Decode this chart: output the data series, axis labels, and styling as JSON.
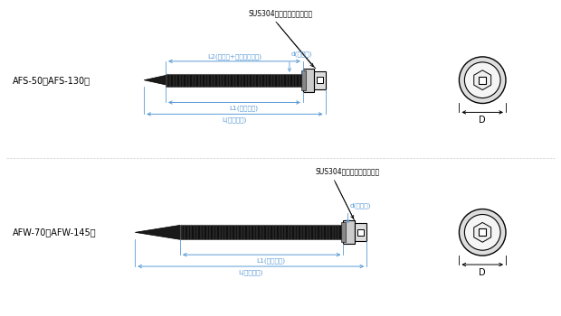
{
  "bg_color": "#ffffff",
  "line_color": "#000000",
  "dim_color": "#5b9bd5",
  "text_color": "#000000",
  "top_label": "AFS-50～AFS-130用",
  "top_sus_label": "SUS304シール材ネオプレン",
  "top_l2_label": "L2(ドリル+不完全ネジ部)",
  "top_d_label": "d(ネジ径)",
  "top_l1_label": "L1(ネジ長さ)",
  "top_l_label": "L(首下長さ)",
  "top_d_dim": "D",
  "bot_label": "AFW-70～AFW-145用",
  "bot_sus_label": "SUS304シール材ネオプレン",
  "bot_d_label": "d(ネジ径)",
  "bot_l1_label": "L1(ネジ長さ)",
  "bot_l_label": "L(首下長さ)",
  "bot_d_dim": "D"
}
